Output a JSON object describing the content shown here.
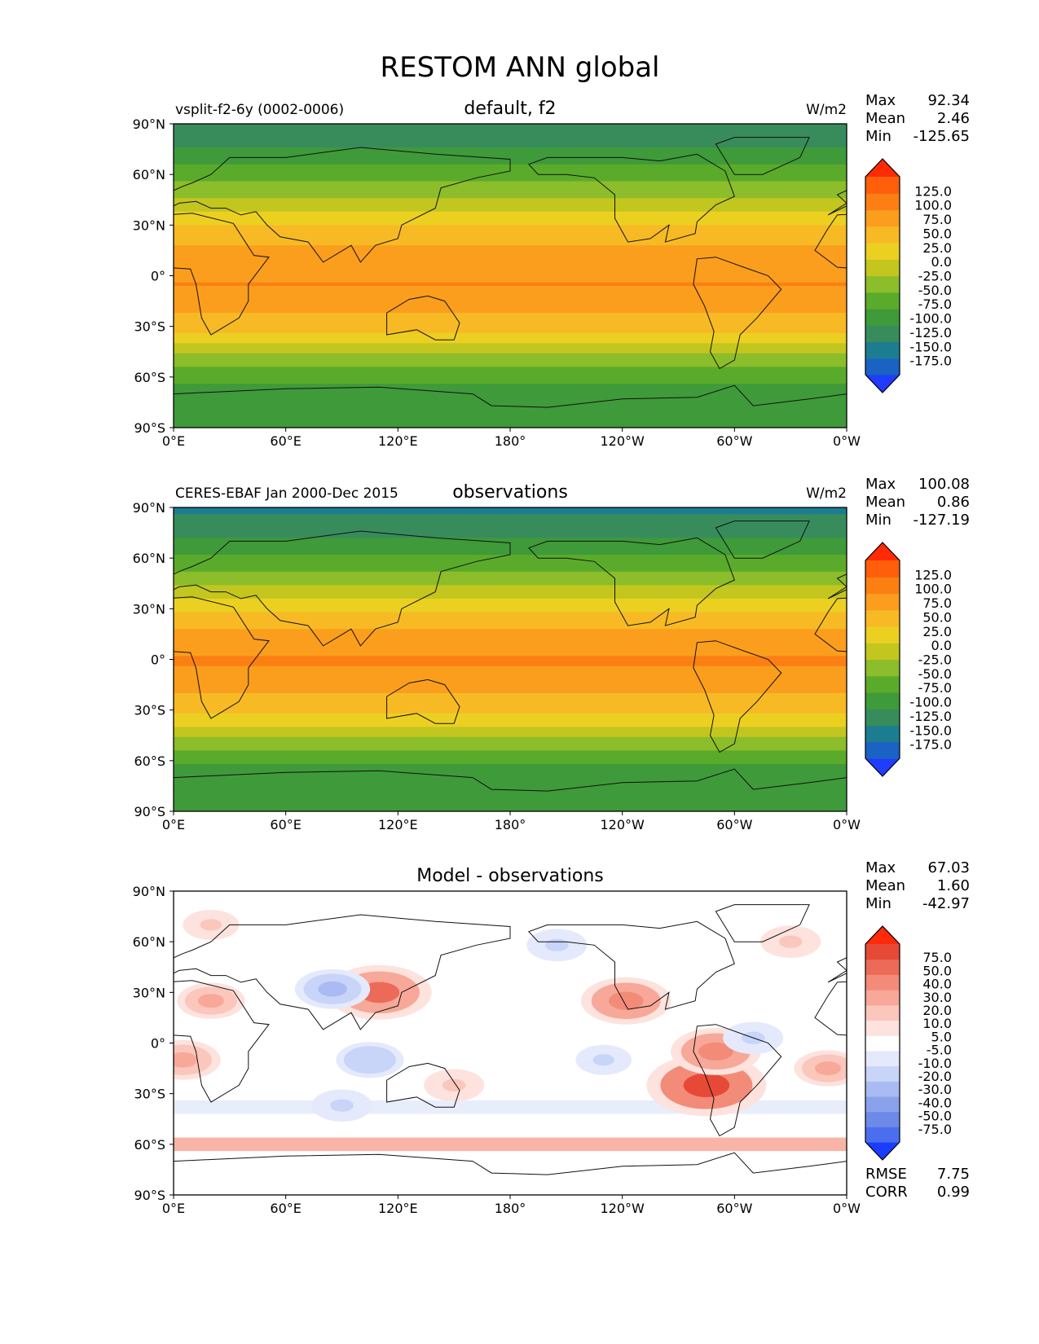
{
  "figure": {
    "title": "RESTOM ANN global"
  },
  "chart_data": [
    {
      "type": "heatmap",
      "title": "default, f2",
      "subtitle": "vsplit-f2-6y (0002-0006)",
      "units": "W/m2",
      "stats": [
        {
          "label": "Max",
          "value": "92.34"
        },
        {
          "label": "Mean",
          "value": "2.46"
        },
        {
          "label": "Min",
          "value": "-125.65"
        }
      ],
      "colorbar": {
        "ticks": [
          "125.0",
          "100.0",
          "75.0",
          "50.0",
          "25.0",
          "0.0",
          "-25.0",
          "-50.0",
          "-75.0",
          "-100.0",
          "-125.0",
          "-150.0",
          "-175.0"
        ],
        "colors": [
          "#1f3cff",
          "#1a62c4",
          "#1c7d90",
          "#388c5c",
          "#3f9a3a",
          "#5aab2b",
          "#8cbd2a",
          "#c2c61f",
          "#ecd021",
          "#f7ba25",
          "#fb9e1d",
          "#fb7f13",
          "#ff5e0b",
          "#ff2b04"
        ]
      },
      "x_ticks": [
        "0°E",
        "60°E",
        "120°E",
        "180°",
        "120°W",
        "60°W",
        "0°W"
      ],
      "y_ticks": [
        "90°N",
        "60°N",
        "30°N",
        "0°",
        "30°S",
        "60°S",
        "90°S"
      ],
      "xlim": [
        0,
        360
      ],
      "ylim": [
        -90,
        90
      ],
      "bands": [
        {
          "lat": 90,
          "value": -110
        },
        {
          "lat": 75,
          "value": -100
        },
        {
          "lat": 65,
          "value": -75
        },
        {
          "lat": 55,
          "value": -50
        },
        {
          "lat": 45,
          "value": -20
        },
        {
          "lat": 35,
          "value": 10
        },
        {
          "lat": 25,
          "value": 40
        },
        {
          "lat": 15,
          "value": 55
        },
        {
          "lat": 5,
          "value": 70
        },
        {
          "lat": -5,
          "value": 75
        },
        {
          "lat": -15,
          "value": 62
        },
        {
          "lat": -25,
          "value": 45
        },
        {
          "lat": -35,
          "value": 20
        },
        {
          "lat": -45,
          "value": -20
        },
        {
          "lat": -55,
          "value": -55
        },
        {
          "lat": -65,
          "value": -80
        },
        {
          "lat": -75,
          "value": -100
        },
        {
          "lat": -90,
          "value": -90
        }
      ]
    },
    {
      "type": "heatmap",
      "title": "observations",
      "subtitle": "CERES-EBAF Jan 2000-Dec 2015",
      "units": "W/m2",
      "stats": [
        {
          "label": "Max",
          "value": "100.08"
        },
        {
          "label": "Mean",
          "value": "0.86"
        },
        {
          "label": "Min",
          "value": "-127.19"
        }
      ],
      "colorbar": {
        "ticks": [
          "125.0",
          "100.0",
          "75.0",
          "50.0",
          "25.0",
          "0.0",
          "-25.0",
          "-50.0",
          "-75.0",
          "-100.0",
          "-125.0",
          "-150.0",
          "-175.0"
        ],
        "colors": [
          "#1f3cff",
          "#1a62c4",
          "#1c7d90",
          "#388c5c",
          "#3f9a3a",
          "#5aab2b",
          "#8cbd2a",
          "#c2c61f",
          "#ecd021",
          "#f7ba25",
          "#fb9e1d",
          "#fb7f13",
          "#ff5e0b",
          "#ff2b04"
        ]
      },
      "x_ticks": [
        "0°E",
        "60°E",
        "120°E",
        "180°",
        "120°W",
        "60°W",
        "0°W"
      ],
      "y_ticks": [
        "90°N",
        "60°N",
        "30°N",
        "0°",
        "30°S",
        "60°S",
        "90°S"
      ],
      "xlim": [
        0,
        360
      ],
      "ylim": [
        -90,
        90
      ],
      "bands": [
        {
          "lat": 90,
          "value": -130
        },
        {
          "lat": 80,
          "value": -120
        },
        {
          "lat": 70,
          "value": -95
        },
        {
          "lat": 60,
          "value": -70
        },
        {
          "lat": 50,
          "value": -45
        },
        {
          "lat": 40,
          "value": -10
        },
        {
          "lat": 30,
          "value": 20
        },
        {
          "lat": 20,
          "value": 45
        },
        {
          "lat": 10,
          "value": 65
        },
        {
          "lat": 0,
          "value": 78
        },
        {
          "lat": -10,
          "value": 68
        },
        {
          "lat": -20,
          "value": 50
        },
        {
          "lat": -30,
          "value": 30
        },
        {
          "lat": -40,
          "value": 0
        },
        {
          "lat": -50,
          "value": -40
        },
        {
          "lat": -60,
          "value": -70
        },
        {
          "lat": -70,
          "value": -100
        },
        {
          "lat": -90,
          "value": -90
        }
      ]
    },
    {
      "type": "heatmap",
      "title": "Model - observations",
      "subtitle": "",
      "units": "",
      "stats": [
        {
          "label": "Max",
          "value": "67.03"
        },
        {
          "label": "Mean",
          "value": "1.60"
        },
        {
          "label": "Min",
          "value": "-42.97"
        }
      ],
      "extra_stats": [
        {
          "label": "RMSE",
          "value": "7.75"
        },
        {
          "label": "CORR",
          "value": "0.99"
        }
      ],
      "colorbar": {
        "ticks": [
          "75.0",
          "50.0",
          "40.0",
          "30.0",
          "20.0",
          "10.0",
          "5.0",
          "-5.0",
          "-10.0",
          "-20.0",
          "-30.0",
          "-40.0",
          "-50.0",
          "-75.0"
        ],
        "colors": [
          "#1a3dff",
          "#4b6ef0",
          "#6d8ae8",
          "#8aa2ec",
          "#a9bbf2",
          "#c8d4f8",
          "#e4eafc",
          "#ffffff",
          "#fde2dd",
          "#fbc6bc",
          "#f7a898",
          "#f28b78",
          "#ec6b58",
          "#e64a36",
          "#ff2a0a"
        ]
      },
      "x_ticks": [
        "0°E",
        "60°E",
        "120°E",
        "180°",
        "120°W",
        "60°W",
        "0°W"
      ],
      "y_ticks": [
        "90°N",
        "60°N",
        "30°N",
        "0°",
        "30°S",
        "60°S",
        "90°S"
      ],
      "xlim": [
        0,
        360
      ],
      "ylim": [
        -90,
        90
      ],
      "anomalies": [
        {
          "lon": 110,
          "lat": 30,
          "value": 45
        },
        {
          "lon": 20,
          "lat": 25,
          "value": 20
        },
        {
          "lon": 5,
          "lat": -10,
          "value": 25
        },
        {
          "lon": 85,
          "lat": 32,
          "value": -25
        },
        {
          "lon": 242,
          "lat": 25,
          "value": 35
        },
        {
          "lon": 285,
          "lat": -25,
          "value": 55
        },
        {
          "lon": 290,
          "lat": -5,
          "value": 35
        },
        {
          "lon": 350,
          "lat": -15,
          "value": 20
        },
        {
          "lon": 105,
          "lat": -10,
          "value": -20
        },
        {
          "lon": 150,
          "lat": -25,
          "value": 15
        },
        {
          "lon": 230,
          "lat": -10,
          "value": -12
        },
        {
          "lon": 310,
          "lat": 3,
          "value": -15
        },
        {
          "lon": 205,
          "lat": 58,
          "value": -15
        },
        {
          "lon": 330,
          "lat": 60,
          "value": 15
        },
        {
          "lon": 90,
          "lat": -37,
          "value": -15
        },
        {
          "lon": 20,
          "lat": 70,
          "value": 12
        }
      ],
      "zonal_rings": [
        {
          "lat": -60,
          "value": 20
        },
        {
          "lat": -38,
          "value": -10
        }
      ]
    }
  ]
}
